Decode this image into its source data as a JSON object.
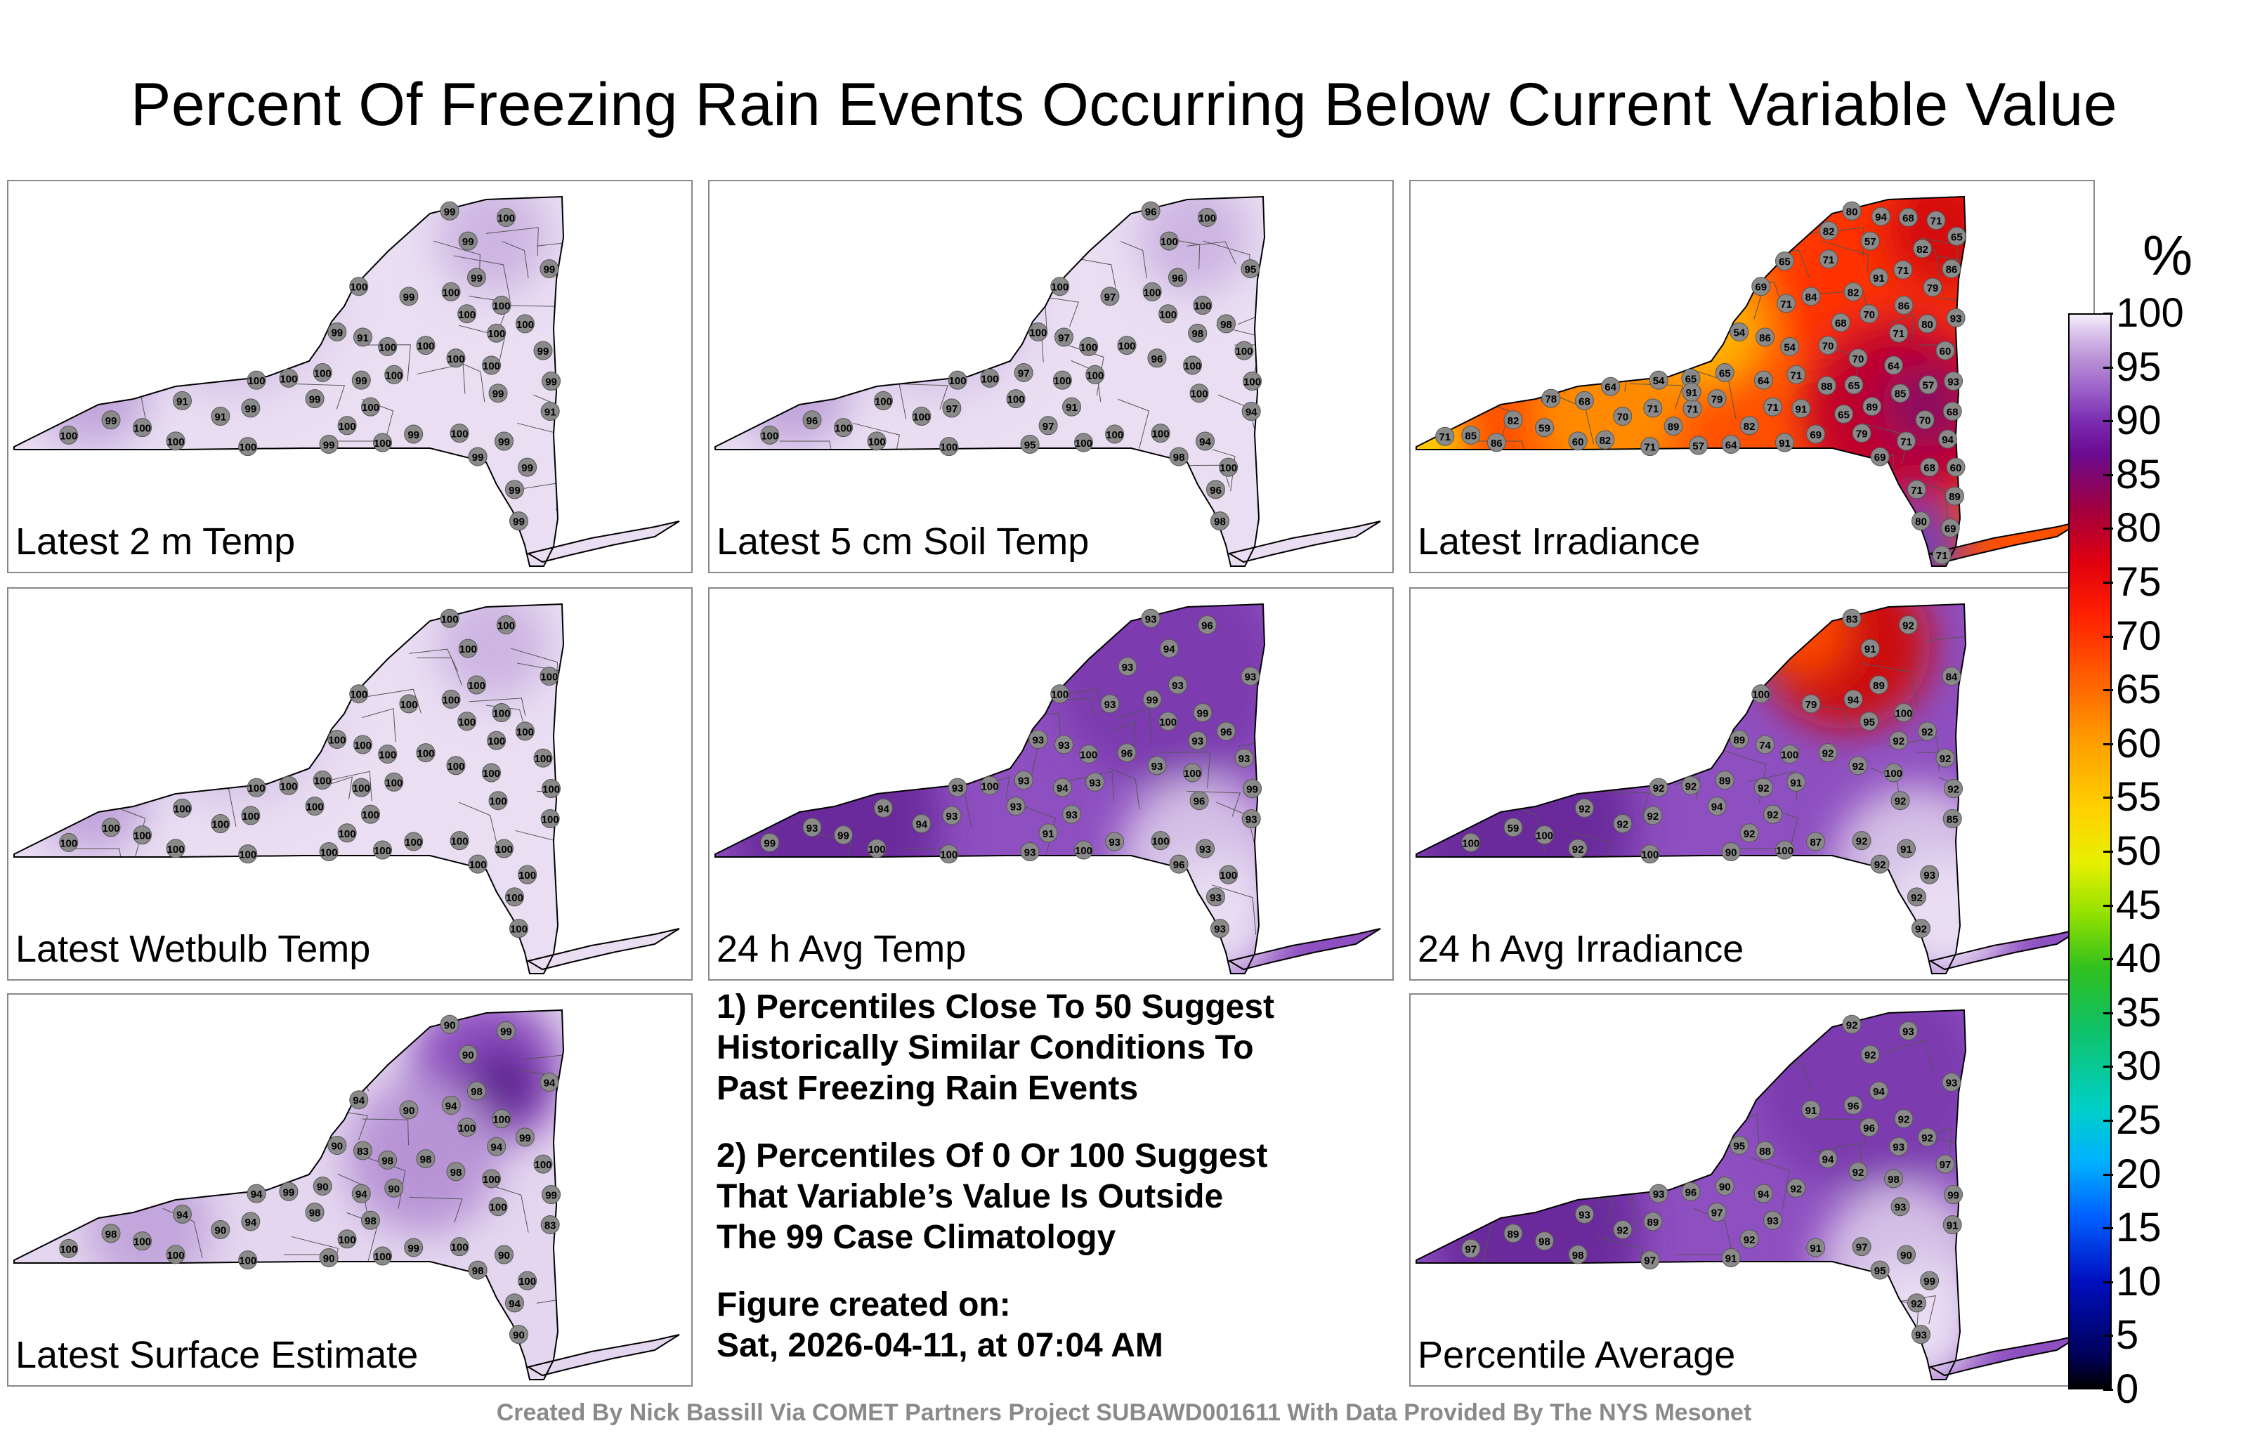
{
  "title": "Percent Of Freezing Rain Events Occurring Below Current Variable Value",
  "panels": [
    {
      "label": "Latest 2 m Temp",
      "scheme": "light",
      "values": [
        "99",
        "99",
        "99",
        "99",
        "99",
        "91",
        "91",
        "99",
        "100",
        "99",
        "99",
        "100",
        "99",
        "99",
        "100",
        "100",
        "100",
        "100",
        "99",
        "99",
        "99",
        "100",
        "99",
        "100",
        "100",
        "99",
        "99",
        "91",
        "91",
        "100",
        "99",
        "99",
        "100",
        "100",
        "99",
        "100",
        "100",
        "100",
        "99",
        "100",
        "100",
        "100",
        "100",
        "100",
        "100",
        "100",
        "100"
      ]
    },
    {
      "label": "Latest 5 cm Soil Temp",
      "scheme": "light",
      "values": [
        "96",
        "96",
        "95",
        "96",
        "97",
        "97",
        "94",
        "94",
        "96",
        "96",
        "97",
        "97",
        "95",
        "98",
        "97",
        "91",
        "98",
        "100",
        "100",
        "100",
        "100",
        "100",
        "100",
        "98",
        "100",
        "100",
        "98",
        "100",
        "100",
        "100",
        "100",
        "100",
        "100",
        "100",
        "100",
        "100",
        "100",
        "100",
        "100",
        "100",
        "100",
        "100",
        "100",
        "100",
        "100",
        "100",
        "100"
      ]
    },
    {
      "label": "Latest Irradiance",
      "scheme": "hot",
      "values": [
        "82",
        "80",
        "86",
        "91",
        "84",
        "86",
        "68",
        "71",
        "70",
        "71",
        "71",
        "65",
        "64",
        "80",
        "82",
        "71",
        "71",
        "54",
        "69",
        "54",
        "57",
        "71",
        "64",
        "80",
        "68",
        "85",
        "69",
        "68",
        "70",
        "70",
        "60",
        "79",
        "82",
        "85",
        "93",
        "79",
        "65",
        "60",
        "68",
        "70",
        "71",
        "64",
        "59",
        "86",
        "91",
        "54",
        "69",
        "71",
        "71",
        "68",
        "89",
        "88",
        "70",
        "65",
        "71",
        "82",
        "57",
        "64",
        "71",
        "60",
        "65",
        "65",
        "57",
        "71",
        "78",
        "65",
        "79",
        "86",
        "69",
        "94",
        "82",
        "71",
        "89",
        "91",
        "71",
        "93",
        "82",
        "94",
        "89",
        "92",
        "91"
      ]
    },
    {
      "label": "Latest Wetbulb Temp",
      "scheme": "light",
      "values": [
        "100",
        "100",
        "100",
        "100",
        "100",
        "100",
        "100",
        "100",
        "100",
        "100",
        "100",
        "100",
        "100",
        "100",
        "100",
        "100",
        "100",
        "100",
        "100",
        "100",
        "100",
        "100",
        "100",
        "100",
        "100",
        "100",
        "100",
        "100",
        "100",
        "100",
        "100",
        "100",
        "100",
        "100",
        "100",
        "100",
        "100",
        "100",
        "100",
        "100",
        "100",
        "100",
        "100",
        "100",
        "100",
        "100",
        "100"
      ]
    },
    {
      "label": "24 h Avg Temp",
      "scheme": "dark",
      "values": [
        "93",
        "93",
        "93",
        "93",
        "93",
        "93",
        "93",
        "93",
        "93",
        "93",
        "93",
        "93",
        "93",
        "93",
        "91",
        "93",
        "93",
        "93",
        "93",
        "93",
        "94",
        "93",
        "94",
        "96",
        "96",
        "96",
        "96",
        "94",
        "94",
        "96",
        "93",
        "93",
        "99",
        "99",
        "99",
        "100",
        "100",
        "100",
        "100",
        "100",
        "100",
        "100",
        "99",
        "99",
        "100",
        "100",
        "100",
        "93"
      ]
    },
    {
      "label": "24 h Avg Irradiance",
      "scheme": "darkhot",
      "values": [
        "59",
        "83",
        "84",
        "89",
        "79",
        "74",
        "85",
        "91",
        "92",
        "92",
        "92",
        "89",
        "90",
        "92",
        "92",
        "92",
        "92",
        "92",
        "87",
        "89",
        "91",
        "91",
        "92",
        "92",
        "92",
        "92",
        "92",
        "92",
        "92",
        "92",
        "92",
        "94",
        "94",
        "100",
        "92",
        "92",
        "92",
        "92",
        "93",
        "95",
        "100",
        "100",
        "100",
        "100",
        "100",
        "100",
        "100"
      ]
    },
    {
      "label": "Latest Surface Estimate",
      "scheme": "mixed",
      "values": [
        "98",
        "90",
        "94",
        "98",
        "90",
        "83",
        "83",
        "90",
        "98",
        "94",
        "94",
        "90",
        "90",
        "90",
        "100",
        "98",
        "94",
        "94",
        "99",
        "90",
        "90",
        "90",
        "94",
        "99",
        "99",
        "100",
        "98",
        "94",
        "90",
        "98",
        "100",
        "98",
        "94",
        "100",
        "99",
        "100",
        "99",
        "100",
        "100",
        "100",
        "100",
        "100",
        "100",
        "100",
        "100",
        "98",
        "94"
      ]
    },
    {
      "label": "Percentile Average",
      "scheme": "dark",
      "values": [
        "89",
        "92",
        "93",
        "94",
        "91",
        "88",
        "91",
        "90",
        "92",
        "92",
        "89",
        "90",
        "91",
        "93",
        "92",
        "93",
        "93",
        "93",
        "91",
        "95",
        "92",
        "92",
        "94",
        "92",
        "93",
        "93",
        "95",
        "93",
        "92",
        "94",
        "97",
        "97",
        "96",
        "97",
        "99",
        "97",
        "96",
        "98",
        "99",
        "96",
        "97",
        "98",
        "98",
        "92"
      ]
    }
  ],
  "notes": [
    "1) Percentiles Close To 50 Suggest\nHistorically Similar Conditions To\nPast Freezing Rain Events",
    "2) Percentiles Of 0 Or 100 Suggest\nThat Variable’s Value Is Outside\nThe 99 Case Climatology"
  ],
  "figure_created_label": "Figure created on:",
  "figure_created_date": "Sat, 2026-04-11, at 07:04 AM",
  "credit": "Created By Nick Bassill Via COMET Partners Project SUBAWD001611 With Data Provided By The NYS Mesonet",
  "colorbar": {
    "unit": "%",
    "ticks": [
      "100",
      "95",
      "90",
      "85",
      "80",
      "75",
      "70",
      "65",
      "60",
      "55",
      "50",
      "45",
      "40",
      "35",
      "30",
      "25",
      "20",
      "15",
      "10",
      "5",
      "0"
    ]
  }
}
